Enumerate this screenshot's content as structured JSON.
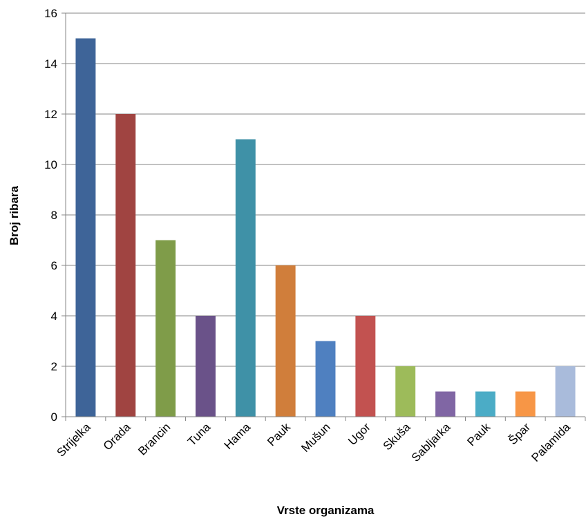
{
  "chart_data": {
    "type": "bar",
    "xlabel": "Vrste organizama",
    "ylabel": "Broj ribara",
    "ylim": [
      0,
      16
    ],
    "yticks": [
      0,
      2,
      4,
      6,
      8,
      10,
      12,
      14,
      16
    ],
    "grid": true,
    "legend": "none",
    "categories": [
      "Strijelka",
      "Orada",
      "Brancin",
      "Tuna",
      "Hama",
      "Pauk",
      "Mušun",
      "Ugor",
      "Skuša",
      "Sabljarka",
      "Pauk",
      "Špar",
      "Palamida"
    ],
    "values": [
      15,
      12,
      7,
      4,
      11,
      6,
      3,
      4,
      2,
      1,
      1,
      1,
      2
    ],
    "colors": [
      "#3E6498",
      "#A04441",
      "#7F9C49",
      "#6A5289",
      "#3F91A7",
      "#D07E3B",
      "#4F80C0",
      "#C25250",
      "#9DBB5A",
      "#8066A4",
      "#4BACC6",
      "#F79646",
      "#A9BBDB"
    ]
  }
}
